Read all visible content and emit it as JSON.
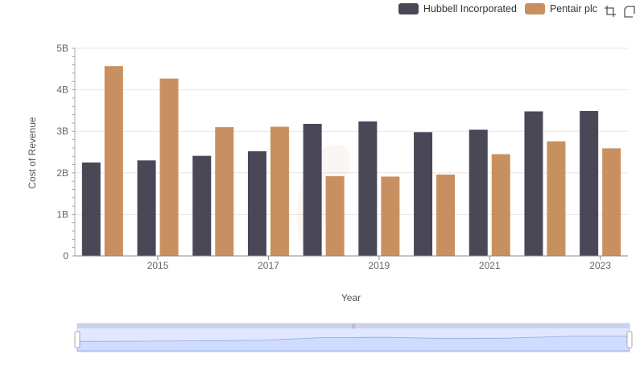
{
  "chart_data": {
    "type": "bar",
    "x": [
      2014,
      2015,
      2016,
      2017,
      2018,
      2019,
      2020,
      2021,
      2022,
      2023
    ],
    "x_tick_labels": [
      "2015",
      "2017",
      "2019",
      "2021",
      "2023"
    ],
    "x_tick_values": [
      2015,
      2017,
      2019,
      2021,
      2023
    ],
    "y_tick_labels": [
      "0",
      "1B",
      "2B",
      "3B",
      "4B",
      "5B"
    ],
    "y_tick_values": [
      0,
      1000000000,
      2000000000,
      3000000000,
      4000000000,
      5000000000
    ],
    "ylim": [
      0,
      5000000000
    ],
    "xlabel": "Year",
    "ylabel": "Cost of Revenue",
    "legend_position": "top-right",
    "grid": true,
    "series": [
      {
        "name": "Hubbell Incorporated",
        "color": "#4a4857",
        "values": [
          2250000000,
          2300000000,
          2410000000,
          2520000000,
          3180000000,
          3240000000,
          2980000000,
          3040000000,
          3480000000,
          3490000000
        ]
      },
      {
        "name": "Pentair plc",
        "color": "#c89060",
        "values": [
          4570000000,
          4270000000,
          3100000000,
          3110000000,
          1920000000,
          1910000000,
          1960000000,
          2450000000,
          2760000000,
          2590000000
        ]
      }
    ]
  },
  "toolbar": {
    "zoom_icon": "box-zoom-icon",
    "reset_icon": "reset-zoom-icon"
  }
}
